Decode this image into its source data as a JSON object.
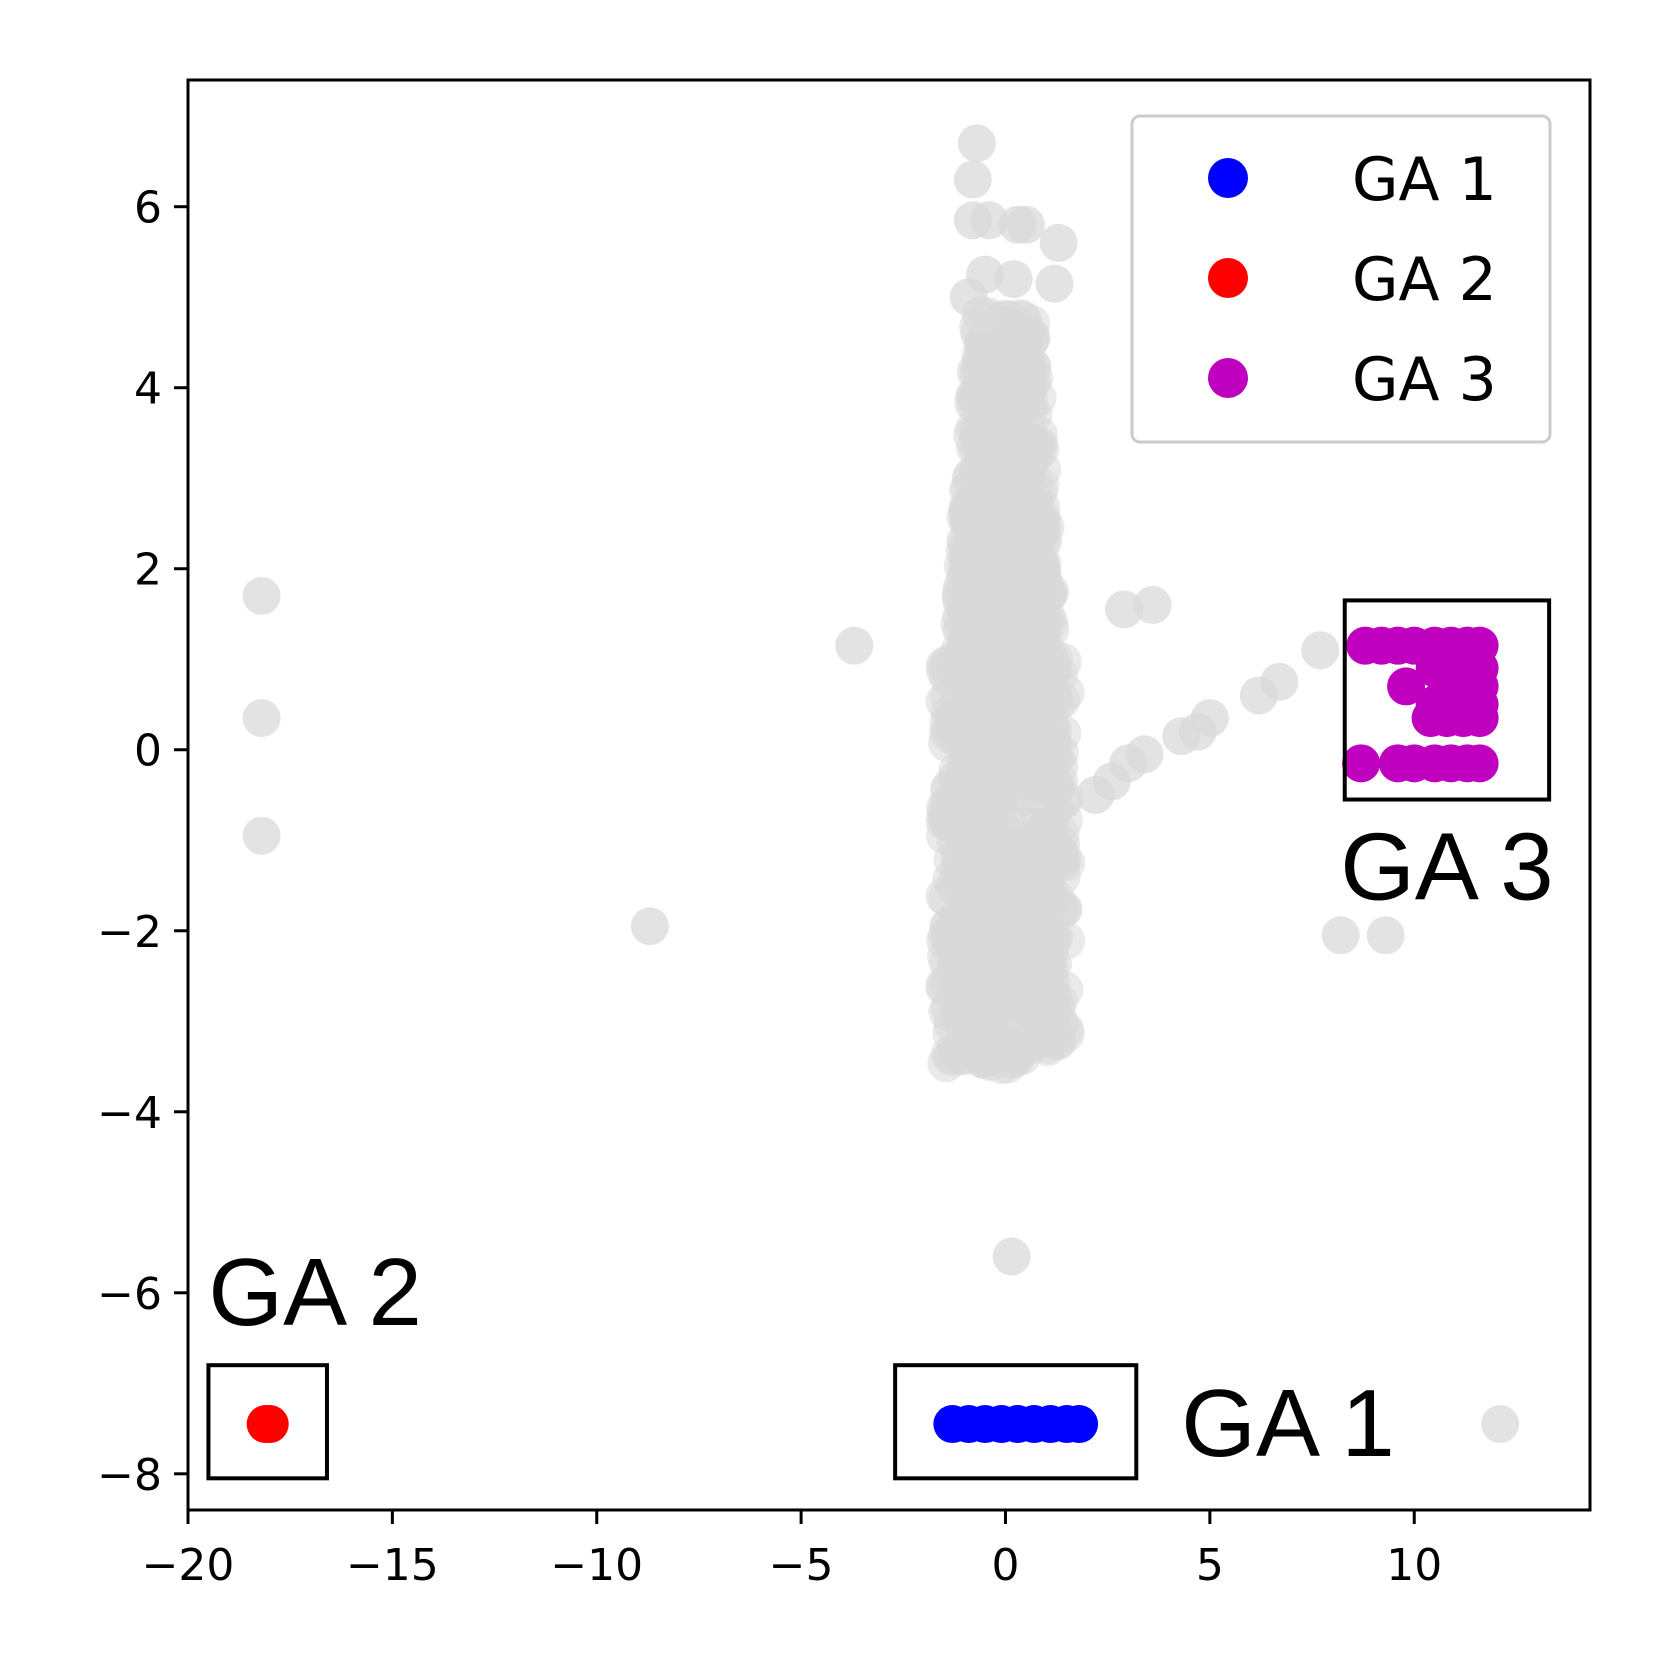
{
  "chart_data": {
    "type": "scatter",
    "title": "",
    "xlabel": "",
    "ylabel": "",
    "xlim": [
      -20,
      14.3
    ],
    "ylim": [
      -8.4,
      7.4
    ],
    "x_ticks": [
      -20,
      -15,
      -10,
      -5,
      0,
      5,
      10
    ],
    "x_tick_labels": [
      "−20",
      "−15",
      "−10",
      "−5",
      "0",
      "5",
      "10"
    ],
    "y_ticks": [
      -8,
      -6,
      -4,
      -2,
      0,
      2,
      4,
      6
    ],
    "y_tick_labels": [
      "−8",
      "−6",
      "−4",
      "−2",
      "0",
      "2",
      "4",
      "6"
    ],
    "grid": false,
    "legend_position": "top-right",
    "background_points": {
      "color": "#d9d9d9",
      "main_cluster": {
        "x_range": [
          -1.9,
          2.3
        ],
        "y_range": [
          -3.5,
          4.8
        ]
      },
      "points": [
        [
          -0.7,
          6.7
        ],
        [
          -0.8,
          6.3
        ],
        [
          -0.8,
          5.85
        ],
        [
          -0.4,
          5.85
        ],
        [
          0.3,
          5.8
        ],
        [
          0.5,
          5.8
        ],
        [
          1.3,
          5.6
        ],
        [
          -0.5,
          5.25
        ],
        [
          0.2,
          5.2
        ],
        [
          1.2,
          5.15
        ],
        [
          -0.9,
          5.0
        ],
        [
          -0.6,
          4.8
        ],
        [
          -18.2,
          1.7
        ],
        [
          -18.2,
          0.35
        ],
        [
          -18.2,
          -0.95
        ],
        [
          -3.7,
          1.15
        ],
        [
          -8.7,
          -1.95
        ],
        [
          2.9,
          1.55
        ],
        [
          3.6,
          1.6
        ],
        [
          7.7,
          1.1
        ],
        [
          6.7,
          0.75
        ],
        [
          6.2,
          0.6
        ],
        [
          5.0,
          0.35
        ],
        [
          4.7,
          0.2
        ],
        [
          4.3,
          0.15
        ],
        [
          3.4,
          -0.05
        ],
        [
          3.0,
          -0.15
        ],
        [
          2.6,
          -0.35
        ],
        [
          2.2,
          -0.5
        ],
        [
          8.2,
          -2.05
        ],
        [
          9.3,
          -2.05
        ],
        [
          0.15,
          -5.6
        ],
        [
          12.1,
          -7.45
        ]
      ]
    },
    "series": [
      {
        "name": "GA 1",
        "color": "#0000ff",
        "points": [
          [
            -1.3,
            -7.45
          ],
          [
            -0.9,
            -7.45
          ],
          [
            -0.5,
            -7.45
          ],
          [
            -0.1,
            -7.45
          ],
          [
            0.3,
            -7.45
          ],
          [
            0.7,
            -7.45
          ],
          [
            1.1,
            -7.45
          ],
          [
            1.5,
            -7.45
          ],
          [
            1.8,
            -7.45
          ]
        ]
      },
      {
        "name": "GA 2",
        "color": "#ff0000",
        "points": [
          [
            -18.1,
            -7.45
          ],
          [
            -18.0,
            -7.45
          ]
        ]
      },
      {
        "name": "GA 3",
        "color": "#bf00bf",
        "points": [
          [
            8.8,
            1.15
          ],
          [
            9.2,
            1.15
          ],
          [
            9.6,
            1.15
          ],
          [
            10.0,
            1.15
          ],
          [
            10.5,
            1.15
          ],
          [
            10.9,
            1.15
          ],
          [
            11.3,
            1.15
          ],
          [
            11.6,
            1.15
          ],
          [
            10.5,
            0.9
          ],
          [
            10.9,
            0.9
          ],
          [
            11.3,
            0.9
          ],
          [
            11.6,
            0.9
          ],
          [
            9.8,
            0.7
          ],
          [
            10.8,
            0.7
          ],
          [
            11.2,
            0.7
          ],
          [
            11.6,
            0.7
          ],
          [
            10.5,
            0.5
          ],
          [
            10.9,
            0.5
          ],
          [
            11.3,
            0.5
          ],
          [
            11.6,
            0.5
          ],
          [
            10.4,
            0.35
          ],
          [
            10.8,
            0.35
          ],
          [
            11.2,
            0.35
          ],
          [
            11.6,
            0.35
          ],
          [
            8.7,
            -0.15
          ],
          [
            9.6,
            -0.15
          ],
          [
            10.0,
            -0.15
          ],
          [
            10.5,
            -0.15
          ],
          [
            10.9,
            -0.15
          ],
          [
            11.3,
            -0.15
          ],
          [
            11.6,
            -0.15
          ]
        ]
      }
    ],
    "annotations": [
      {
        "label": "GA 1",
        "box_x": [
          -2.7,
          3.2
        ],
        "box_y": [
          -8.05,
          -6.8
        ]
      },
      {
        "label": "GA 2",
        "box_x": [
          -19.5,
          -16.6
        ],
        "box_y": [
          -8.05,
          -6.8
        ]
      },
      {
        "label": "GA 3",
        "box_x": [
          8.3,
          13.3
        ],
        "box_y": [
          -0.55,
          1.65
        ]
      }
    ]
  }
}
